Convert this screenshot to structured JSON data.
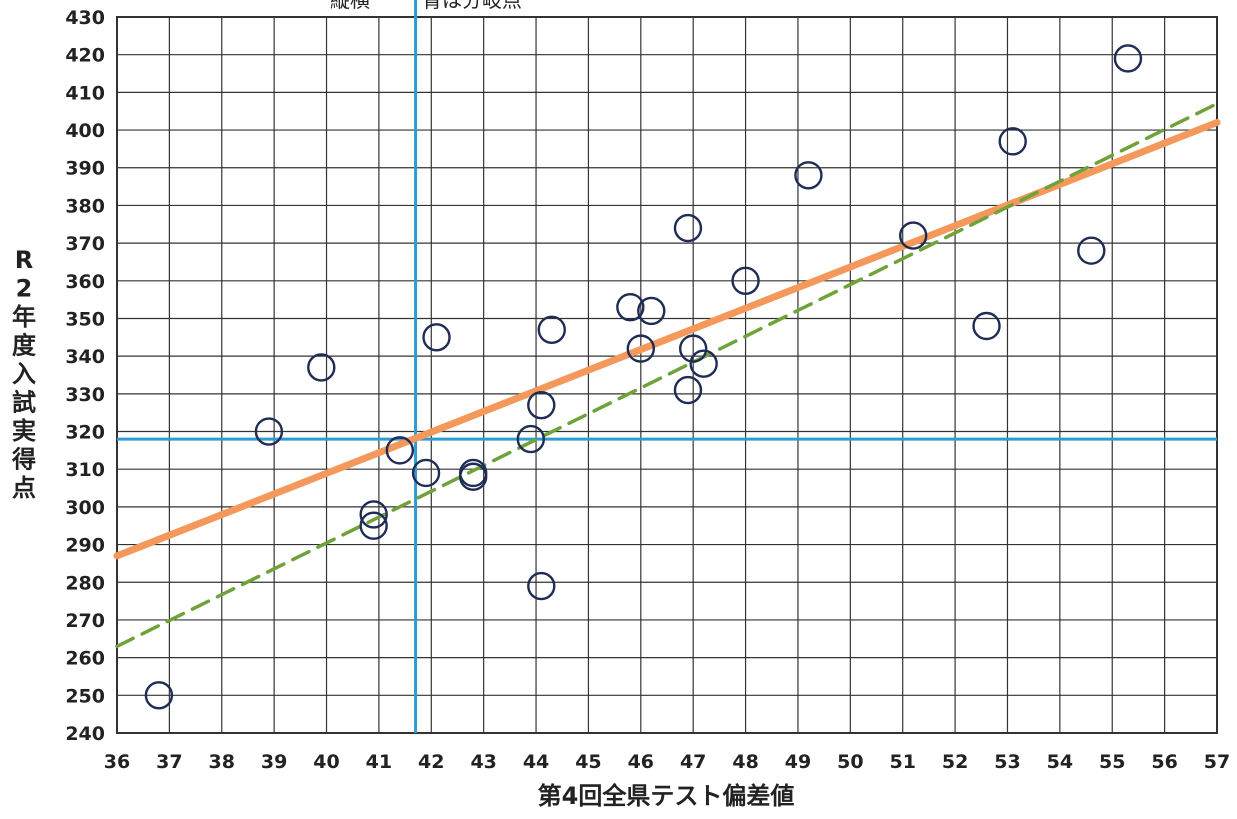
{
  "chart_data": {
    "type": "scatter",
    "title": "",
    "note": {
      "dark": "縦横",
      "blue": "青は分岐点"
    },
    "xlabel": "第4回全県テスト偏差値",
    "ylabel": "R2年度入試実得点",
    "xlim": [
      36,
      57
    ],
    "ylim": [
      240,
      430
    ],
    "x_ticks": [
      "36",
      "37",
      "38",
      "39",
      "40",
      "41",
      "42",
      "43",
      "44",
      "45",
      "46",
      "47",
      "48",
      "49",
      "50",
      "51",
      "52",
      "53",
      "54",
      "55",
      "56",
      "57"
    ],
    "y_ticks": [
      "240",
      "250",
      "260",
      "270",
      "280",
      "290",
      "300",
      "310",
      "320",
      "330",
      "340",
      "350",
      "360",
      "370",
      "380",
      "390",
      "400",
      "410",
      "420",
      "430"
    ],
    "grid": true,
    "points": [
      {
        "x": 36.8,
        "y": 250
      },
      {
        "x": 38.9,
        "y": 320
      },
      {
        "x": 39.9,
        "y": 337
      },
      {
        "x": 40.9,
        "y": 298
      },
      {
        "x": 40.9,
        "y": 295
      },
      {
        "x": 41.4,
        "y": 315
      },
      {
        "x": 41.9,
        "y": 309
      },
      {
        "x": 42.1,
        "y": 345
      },
      {
        "x": 42.8,
        "y": 309
      },
      {
        "x": 42.8,
        "y": 308
      },
      {
        "x": 43.9,
        "y": 318
      },
      {
        "x": 44.1,
        "y": 327
      },
      {
        "x": 44.1,
        "y": 279
      },
      {
        "x": 44.3,
        "y": 347
      },
      {
        "x": 45.8,
        "y": 353
      },
      {
        "x": 46.0,
        "y": 342
      },
      {
        "x": 46.2,
        "y": 352
      },
      {
        "x": 46.9,
        "y": 374
      },
      {
        "x": 46.9,
        "y": 331
      },
      {
        "x": 47.0,
        "y": 342
      },
      {
        "x": 47.2,
        "y": 338
      },
      {
        "x": 48.0,
        "y": 360
      },
      {
        "x": 49.2,
        "y": 388
      },
      {
        "x": 51.2,
        "y": 372
      },
      {
        "x": 52.6,
        "y": 348
      },
      {
        "x": 53.1,
        "y": 397
      },
      {
        "x": 54.6,
        "y": 368
      },
      {
        "x": 55.3,
        "y": 419
      }
    ],
    "reference_lines": {
      "vertical_x": 41.7,
      "horizontal_y": 318
    },
    "trend_lines": [
      {
        "style": "solid",
        "color": "#f4985c",
        "x": [
          36,
          57
        ],
        "y": [
          287,
          402
        ]
      },
      {
        "style": "dashed",
        "color": "#6fa33a",
        "x": [
          36,
          57
        ],
        "y": [
          263,
          407
        ]
      }
    ],
    "colors": {
      "grid": "#333333",
      "reference": "#2f9bd1",
      "marker_edge": "#1f2c55",
      "note_dark": "#333333",
      "note_blue": "#6aaad6"
    }
  }
}
